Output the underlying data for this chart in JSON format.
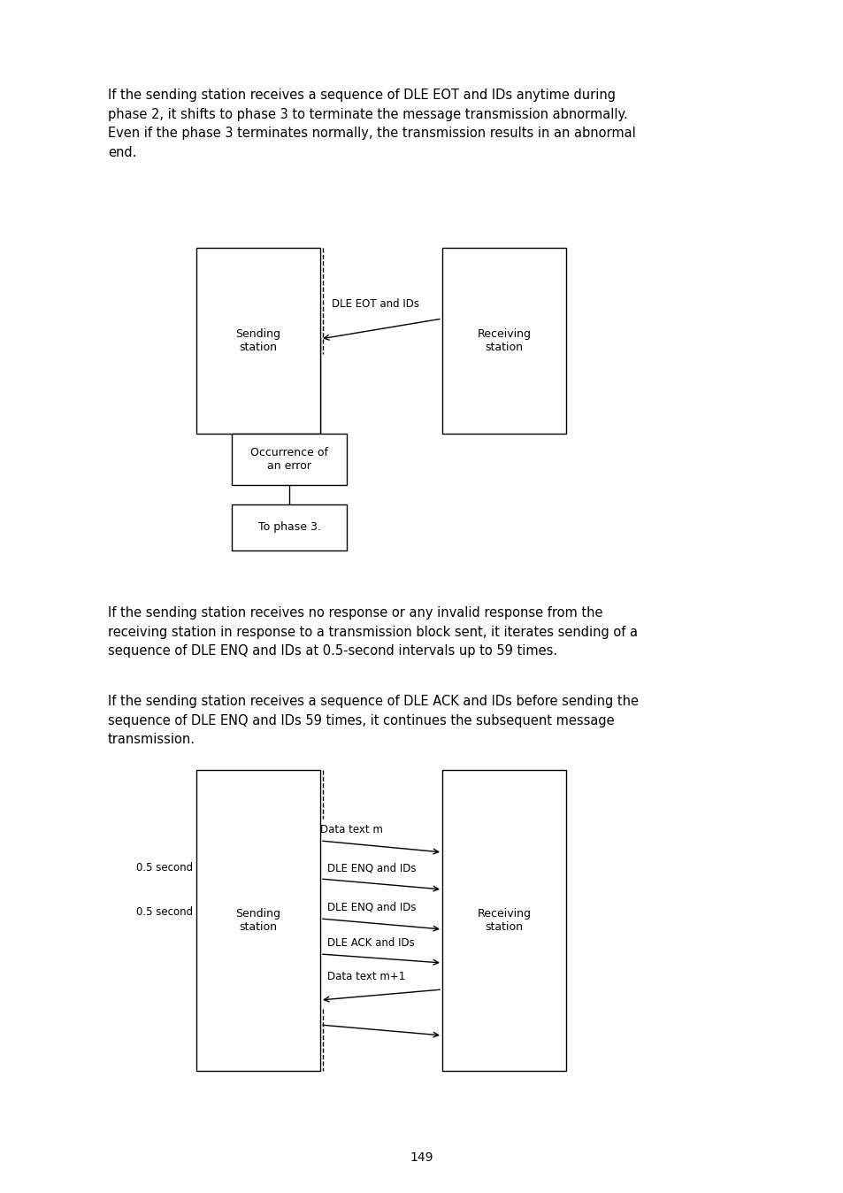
{
  "bg_color": "#ffffff",
  "page_number": "149",
  "para1": "If the sending station receives a sequence of DLE EOT and IDs anytime during\nphase 2, it shifts to phase 3 to terminate the message transmission abnormally.\nEven if the phase 3 terminates normally, the transmission results in an abnormal\nend.",
  "para2": "If the sending station receives no response or any invalid response from the\nreceiving station in response to a transmission block sent, it iterates sending of a\nsequence of DLE ENQ and IDs at 0.5-second intervals up to 59 times.",
  "para3": "If the sending station receives a sequence of DLE ACK and IDs before sending the\nsequence of DLE ENQ and IDs 59 times, it continues the subsequent message\ntransmission.",
  "font_size_para": 10.5,
  "font_size_diag": 9.0,
  "font_size_arrow": 8.5,
  "font_size_page": 10.0
}
